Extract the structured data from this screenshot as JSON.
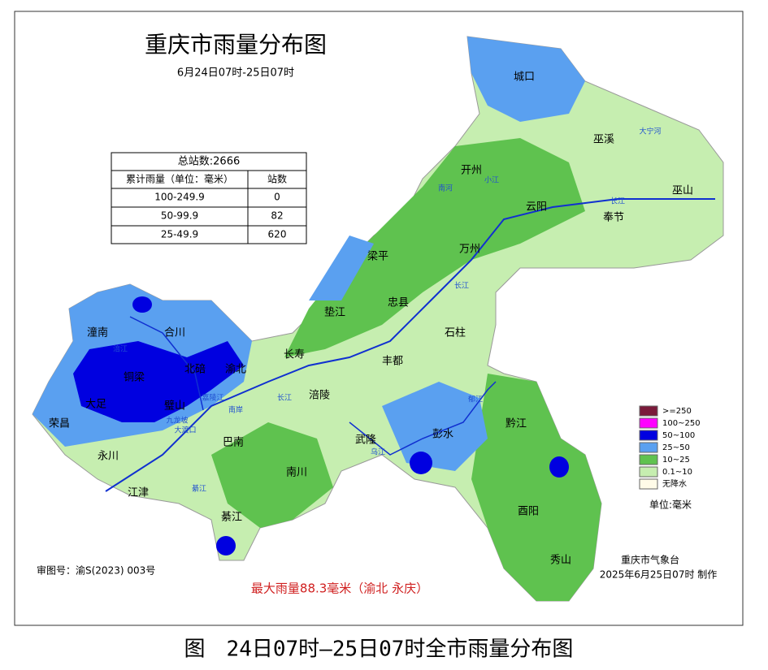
{
  "title": "重庆市雨量分布图",
  "subtitle": "6月24日07时-25日07时",
  "table": {
    "total": "总站数:2666",
    "headers": [
      "累计雨量（单位：毫米）",
      "站数"
    ],
    "rows": [
      [
        "100-249.9",
        "0"
      ],
      [
        "50-99.9",
        "82"
      ],
      [
        "25-49.9",
        "620"
      ]
    ]
  },
  "places": [
    "城口",
    "巫溪",
    "开州",
    "云阳",
    "巫山",
    "奉节",
    "梁平",
    "万州",
    "忠县",
    "垫江",
    "石柱",
    "长寿",
    "丰都",
    "涪陵",
    "潼南",
    "合川",
    "铜梁",
    "北碚",
    "渝北",
    "大足",
    "璧山",
    "荣昌",
    "永川",
    "巴南",
    "武隆",
    "彭水",
    "黔江",
    "南川",
    "江津",
    "綦江",
    "酉阳",
    "秀山"
  ],
  "rivers": [
    "大宁河",
    "南河",
    "小江",
    "长江",
    "长江",
    "长江",
    "乌江",
    "郁江",
    "涪江",
    "嘉陵江",
    "南岸",
    "九龙坡",
    "大渡口",
    "綦江"
  ],
  "legend": {
    "items": [
      {
        "label": ">=250",
        "color": "#7a1a3a"
      },
      {
        "label": "100~250",
        "color": "#ff00ff"
      },
      {
        "label": "50~100",
        "color": "#0000e0"
      },
      {
        "label": "25~50",
        "color": "#5aa0f0"
      },
      {
        "label": "10~25",
        "color": "#5fc24f"
      },
      {
        "label": "0.1~10",
        "color": "#c6eeb0"
      },
      {
        "label": "无降水",
        "color": "#fffbe8"
      }
    ],
    "unit": "单位:毫米"
  },
  "footer": {
    "approval": "审图号：渝S(2023) 003号",
    "max_rain": "最大雨量88.3毫米（渝北 永庆）",
    "agency": "重庆市气象台",
    "made": "2025年6月25日07时 制作"
  },
  "caption": "图　24日07时—25日07时全市雨量分布图"
}
